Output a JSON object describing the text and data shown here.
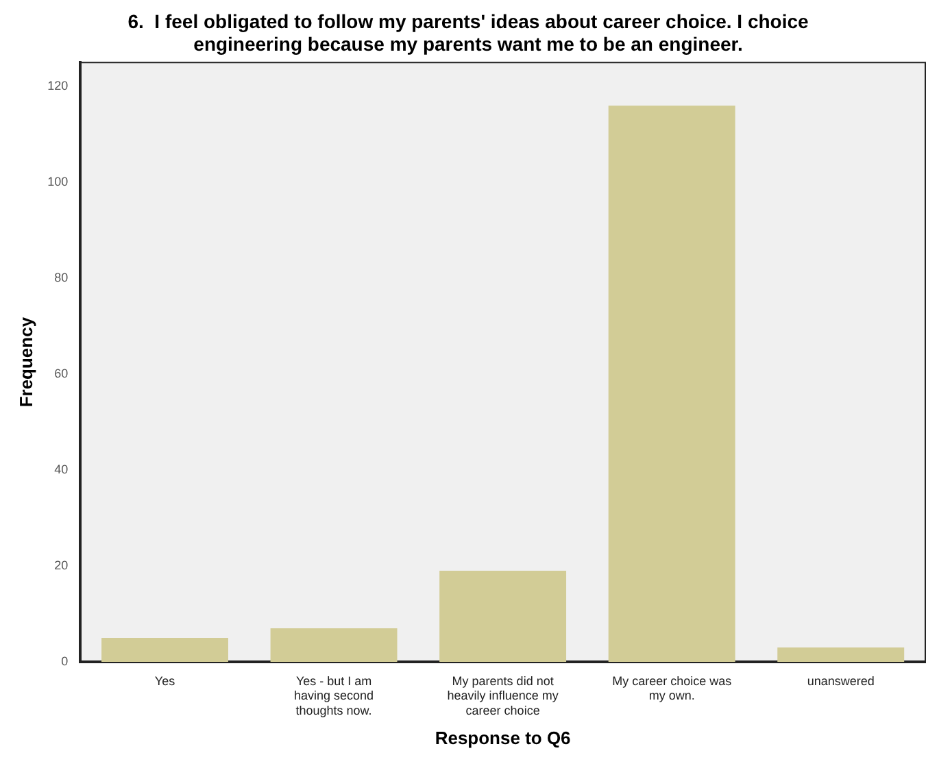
{
  "chart_data": {
    "type": "bar",
    "title": "6.  I feel obligated to follow my parents' ideas about career choice. I choice engineering because my parents want me to be an engineer.",
    "xlabel": "Response to Q6",
    "ylabel": "Frequency",
    "categories": [
      "Yes",
      "Yes - but I am having second thoughts now.",
      "My parents did not heavily influence my career choice",
      "My career choice was my own.",
      "unanswered"
    ],
    "values": [
      5,
      7,
      19,
      116,
      3
    ],
    "color": "#d2cc96",
    "ylim": [
      0,
      125
    ],
    "yticks": [
      0,
      20,
      40,
      60,
      80,
      100,
      120
    ],
    "grid": false,
    "legend": false
  }
}
